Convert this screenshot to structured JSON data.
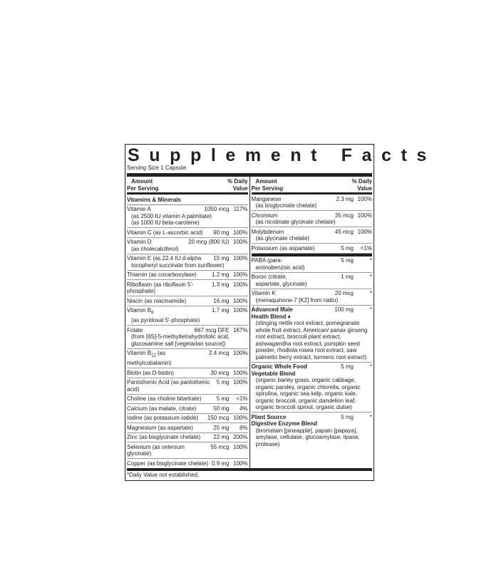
{
  "title": "Supplement Facts",
  "serving": "Serving Size 1 Capsule",
  "header": {
    "amount": "Amount",
    "per": "Per Serving",
    "dv1": "% Daily",
    "dv2": "Value"
  },
  "left": {
    "section": "Vitamins & Minerals",
    "rows": [
      {
        "name": "Vitamin A",
        "amount": "1050 mcg",
        "dv": "117%",
        "sub": [
          "(as 2500 IU vitamin A palmitate)",
          "(as 1000 IU beta-carotene)"
        ]
      },
      {
        "name": "Vitamin C (as L-ascorbic acid)",
        "amount": "90 mg",
        "dv": "100%"
      },
      {
        "name": "Vitamin D",
        "amount": "20 mcg (800 IU)",
        "dv": "100%",
        "sub": [
          "(as cholecalciferol)"
        ]
      },
      {
        "name": "Vitamin E (as 22.4 IU d-alpha",
        "amount": "15 mg",
        "dv": "100%",
        "sub": [
          "tocopheryl succinate from sunflower)"
        ]
      },
      {
        "name": "Thiamin (as cocarboxylase)",
        "amount": "1.2 mg",
        "dv": "100%"
      },
      {
        "name": "Riboflavin (as riboflavin 5'-phosphate)",
        "amount": "1.3 mg",
        "dv": "100%"
      },
      {
        "name": "Niacin (as niacinamide)",
        "amount": "16 mg",
        "dv": "100%"
      },
      {
        "name": "Vitamin B",
        "subscript": "6",
        "amount": "1.7 mg",
        "dv": "100%",
        "sub": [
          "(as pyridoxal 5'-phosphate)"
        ]
      },
      {
        "name": "Folate",
        "amount": "667 mcg DFE",
        "dv": "167%",
        "sub": [
          "(from [6S]-5-methyltetrahydrofolic acid,",
          "glucosamine salt [vegetarian source])"
        ]
      },
      {
        "name": "Vitamin B",
        "subscript": "12",
        "after": " (as methylcobalamin)",
        "amount": "2.4 mcg",
        "dv": "100%"
      },
      {
        "name": "Biotin (as D-biotin)",
        "amount": "30 mcg",
        "dv": "100%"
      },
      {
        "name": "Pantothenic Acid (as pantothenic acid)",
        "amount": "5 mg",
        "dv": "100%"
      },
      {
        "name": "Choline (as choline bitartrate)",
        "amount": "5 mg",
        "dv": "<1%"
      },
      {
        "name": "Calcium (as malate, citrate)",
        "amount": "50 mg",
        "dv": "4%"
      },
      {
        "name": "Iodine (as potassium iodide)",
        "amount": "150 mcg",
        "dv": "100%"
      },
      {
        "name": "Magnesium (as aspartate)",
        "amount": "25 mg",
        "dv": "6%"
      },
      {
        "name": "Zinc (as bisglycinate chelate)",
        "amount": "22 mg",
        "dv": "200%"
      },
      {
        "name": "Selenium (as selenium glycinate)",
        "amount": "55 mcg",
        "dv": "100%"
      },
      {
        "name": "Copper (as bisglycinate chelate)",
        "amount": "0.9 mg",
        "dv": "100%"
      }
    ]
  },
  "right": {
    "rows": [
      {
        "name": "Manganese",
        "amount": "2.3 mg",
        "dv": "100%",
        "sub": [
          "(as bisglycinate chelate)"
        ]
      },
      {
        "name": "Chromium",
        "amount": "35 mcg",
        "dv": "100%",
        "sub": [
          "(as nicotinate glycinate chelate)"
        ]
      },
      {
        "name": "Molybdenum",
        "amount": "45 mcg",
        "dv": "100%",
        "sub": [
          "(as glycinate chelate)"
        ]
      },
      {
        "name": "Potassium (as aspartate)",
        "amount": "5 mg",
        "dv": "<1%"
      },
      {
        "name": "PABA (para-",
        "amount": "5 mg",
        "dv": "*",
        "sub": [
          "aminobenzoic acid)"
        ],
        "heavy": true
      },
      {
        "name": "Boron (citrate,",
        "amount": "1 mg",
        "dv": "*",
        "sub": [
          "aspartate, glycinate)"
        ]
      },
      {
        "name": "Vitamin K",
        "amount": "20 mcg",
        "dv": "*",
        "sub": [
          "(menaquinone-7 [K2] from natto)"
        ]
      },
      {
        "name": "Advanced Male",
        "name2": "Health Blend ♦",
        "bold": true,
        "amount": "100 mg",
        "dv": "*",
        "sub": [
          "(stinging nettle root extract, pomegranate whole fruit extract, American/ panax ginseng root extract, broccoli plant extract, ashwagandha root extract, pumpkin seed powder, rhodiola rosea root extract, saw palmetto berry extract, turmeric root extract)"
        ]
      },
      {
        "name": "Organic Whole Food",
        "name2": "Vegetable Blend",
        "bold": true,
        "amount": "5 mg",
        "dv": "*",
        "sub": [
          "(organic barley grass, organic cabbage, organic parsley, organic chlorella, organic spirulina, organic sea kelp, organic kale, organic broccoli, organic dandelion leaf, organic broccoli sprout, organic dulse)"
        ]
      },
      {
        "name": "Plant Source",
        "name2": "Digestive Enzyme Blend",
        "bold": true,
        "amount": "5 mg",
        "dv": "*",
        "sub": [
          "(bromelain [pineapple], papain [papaya], amylase, cellulase, glucoamylase, lipase, protease)"
        ]
      }
    ]
  },
  "footer": "*Daily Value not established."
}
